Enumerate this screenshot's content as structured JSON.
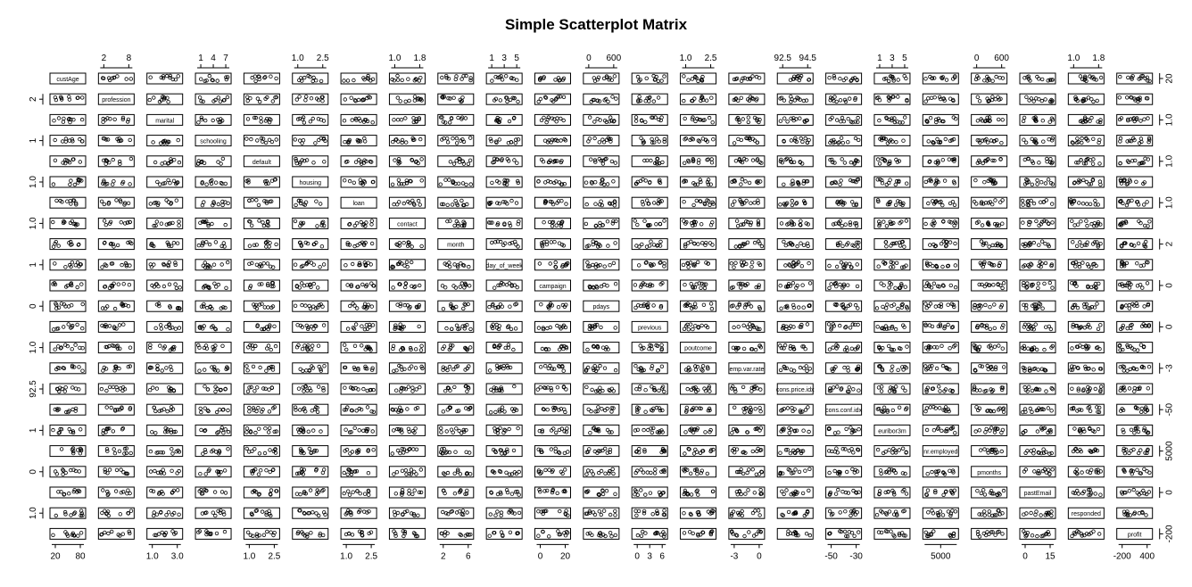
{
  "chart_data": {
    "type": "scatter",
    "title": "Simple Scatterplot Matrix",
    "variables": [
      "custAge",
      "profession",
      "marital",
      "schooling",
      "default",
      "housing",
      "loan",
      "contact",
      "month",
      "day_of_week",
      "campaign",
      "pdays",
      "previous",
      "poutcome",
      "emp.var.rate",
      "cons.price.idx",
      "cons.conf.idx",
      "euribor3m",
      "nr.employed",
      "pmonths",
      "pastEmail",
      "responded",
      "profit"
    ],
    "diagonal_labels": [
      "custAge",
      "profession",
      "marital",
      "schooling",
      "default",
      "housing",
      "loan",
      "contact",
      "month",
      "day_of_week",
      "campaign",
      "pdays",
      "previous",
      "poutcome",
      "emp.var.rate",
      "cons.price.idx",
      "cons.conf.idx",
      "euribor3m",
      "nr.employed",
      "pmonths",
      "pastEmail",
      "responded",
      "profit"
    ],
    "top_axis": [
      {
        "col": 1,
        "ticks": [
          "2",
          "8"
        ]
      },
      {
        "col": 3,
        "ticks": [
          "1",
          "4",
          "7"
        ]
      },
      {
        "col": 5,
        "ticks": [
          "1.0",
          "2.5"
        ]
      },
      {
        "col": 7,
        "ticks": [
          "1.0",
          "1.8"
        ]
      },
      {
        "col": 9,
        "ticks": [
          "1",
          "3",
          "5"
        ]
      },
      {
        "col": 11,
        "ticks": [
          "0",
          "600"
        ]
      },
      {
        "col": 13,
        "ticks": [
          "1.0",
          "2.5"
        ]
      },
      {
        "col": 15,
        "ticks": [
          "92.5",
          "94.5"
        ]
      },
      {
        "col": 17,
        "ticks": [
          "1",
          "3",
          "5"
        ]
      },
      {
        "col": 19,
        "ticks": [
          "0",
          "600"
        ]
      },
      {
        "col": 21,
        "ticks": [
          "1.0",
          "1.8"
        ]
      }
    ],
    "bottom_axis": [
      {
        "col": 0,
        "ticks": [
          "20",
          "80"
        ]
      },
      {
        "col": 2,
        "ticks": [
          "1.0",
          "3.0"
        ]
      },
      {
        "col": 4,
        "ticks": [
          "1.0",
          "2.5"
        ]
      },
      {
        "col": 6,
        "ticks": [
          "1.0",
          "2.5"
        ]
      },
      {
        "col": 8,
        "ticks": [
          "2",
          "6"
        ]
      },
      {
        "col": 10,
        "ticks": [
          "0",
          "20"
        ]
      },
      {
        "col": 12,
        "ticks": [
          "0",
          "3",
          "6"
        ]
      },
      {
        "col": 14,
        "ticks": [
          "-3",
          "0"
        ]
      },
      {
        "col": 16,
        "ticks": [
          "-50",
          "-30"
        ]
      },
      {
        "col": 18,
        "ticks": [
          "5000"
        ]
      },
      {
        "col": 20,
        "ticks": [
          "0",
          "15"
        ]
      },
      {
        "col": 22,
        "ticks": [
          "-200",
          "400"
        ]
      }
    ],
    "left_axis": [
      {
        "row": 1,
        "ticks": [
          "2"
        ]
      },
      {
        "row": 3,
        "ticks": [
          "1"
        ]
      },
      {
        "row": 5,
        "ticks": [
          "1.0"
        ]
      },
      {
        "row": 7,
        "ticks": [
          "1.0"
        ]
      },
      {
        "row": 9,
        "ticks": [
          "1"
        ]
      },
      {
        "row": 11,
        "ticks": [
          "0"
        ]
      },
      {
        "row": 13,
        "ticks": [
          "1.0"
        ]
      },
      {
        "row": 15,
        "ticks": [
          "92.5"
        ]
      },
      {
        "row": 17,
        "ticks": [
          "1"
        ]
      },
      {
        "row": 19,
        "ticks": [
          "0"
        ]
      },
      {
        "row": 21,
        "ticks": [
          "1.0"
        ]
      }
    ],
    "right_axis": [
      {
        "row": 0,
        "ticks": [
          "20"
        ]
      },
      {
        "row": 2,
        "ticks": [
          "1.0"
        ]
      },
      {
        "row": 4,
        "ticks": [
          "1.0"
        ]
      },
      {
        "row": 6,
        "ticks": [
          "1.0"
        ]
      },
      {
        "row": 8,
        "ticks": [
          "2"
        ]
      },
      {
        "row": 10,
        "ticks": [
          "0"
        ]
      },
      {
        "row": 12,
        "ticks": [
          "0"
        ]
      },
      {
        "row": 14,
        "ticks": [
          "-3"
        ]
      },
      {
        "row": 16,
        "ticks": [
          "-50"
        ]
      },
      {
        "row": 18,
        "ticks": [
          "5000"
        ]
      },
      {
        "row": 20,
        "ticks": [
          "0"
        ]
      },
      {
        "row": 22,
        "ticks": [
          "-200"
        ]
      }
    ],
    "point_style": "open-circle",
    "color": "#000000",
    "grid": false
  }
}
